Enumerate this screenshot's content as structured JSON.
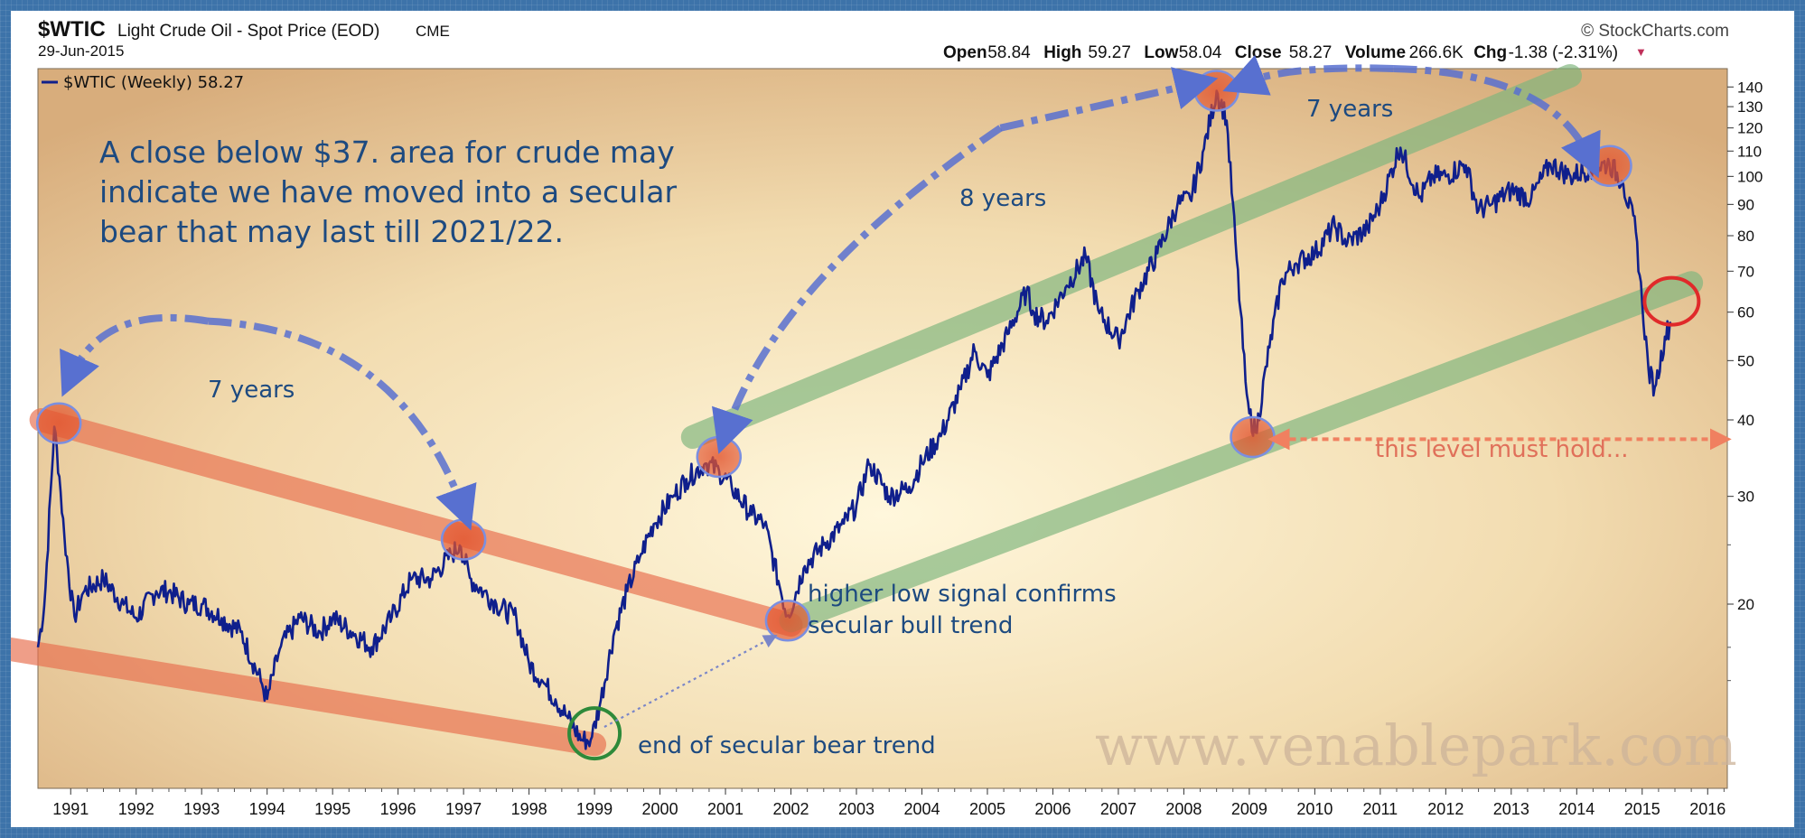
{
  "header": {
    "symbol": "$WTIC",
    "name": "Light Crude Oil - Spot Price (EOD)",
    "exchange": "CME",
    "date": "29-Jun-2015",
    "brand": "© StockCharts.com",
    "ohlc": [
      {
        "label": "Open",
        "value": "58.84"
      },
      {
        "label": "High",
        "value": "59.27"
      },
      {
        "label": "Low",
        "value": "58.04"
      },
      {
        "label": "Close",
        "value": "58.27"
      },
      {
        "label": "Volume",
        "value": "266.6K"
      },
      {
        "label": "Chg",
        "value": "-1.38 (-2.31%)"
      }
    ],
    "chg_marker": "▼"
  },
  "legend": "$WTIC (Weekly) 58.27",
  "annotations": {
    "note": [
      "A close below $37. area for crude may",
      "indicate we have moved into a secular",
      "bear that may last till 2021/22."
    ],
    "seven_years_1": "7 years",
    "eight_years": "8 years",
    "seven_years_2": "7 years",
    "higher_low": [
      "higher low signal confirms",
      "secular bull trend"
    ],
    "end_bear": "end of secular bear trend",
    "level_hold": "this level must hold...",
    "watermark": "www.venablepark.com"
  },
  "colors": {
    "line": "#0f1f8c",
    "bear_channel": "#e8704f",
    "bull_channel": "#7fb57e",
    "arc": "#5870d0",
    "text_annotation": "#1d4a80",
    "hold_arrow": "#f08060"
  },
  "chart_data": {
    "type": "line",
    "title": "$WTIC Light Crude Oil - Spot Price (EOD)",
    "series": [
      {
        "name": "$WTIC (Weekly)",
        "x": [
          1990.5,
          1990.6,
          1990.75,
          1990.82,
          1990.9,
          1991.05,
          1991.2,
          1991.5,
          1991.8,
          1992.0,
          1992.3,
          1992.5,
          1992.8,
          1993.0,
          1993.3,
          1993.6,
          1993.9,
          1994.0,
          1994.2,
          1994.5,
          1994.8,
          1995.0,
          1995.3,
          1995.6,
          1995.9,
          1996.2,
          1996.5,
          1996.8,
          1996.95,
          1997.1,
          1997.3,
          1997.5,
          1997.8,
          1998.0,
          1998.2,
          1998.4,
          1998.6,
          1998.8,
          1998.95,
          1999.1,
          1999.3,
          1999.5,
          1999.7,
          1999.9,
          2000.2,
          2000.4,
          2000.7,
          2000.9,
          2001.1,
          2001.4,
          2001.6,
          2001.8,
          2001.95,
          2002.2,
          2002.5,
          2002.8,
          2003.0,
          2003.2,
          2003.5,
          2003.8,
          2004.0,
          2004.3,
          2004.6,
          2004.8,
          2005.0,
          2005.3,
          2005.6,
          2005.7,
          2005.9,
          2006.2,
          2006.5,
          2006.7,
          2007.0,
          2007.3,
          2007.6,
          2007.9,
          2008.1,
          2008.3,
          2008.5,
          2008.65,
          2008.8,
          2008.95,
          2009.0,
          2009.1,
          2009.3,
          2009.5,
          2009.7,
          2010.0,
          2010.3,
          2010.5,
          2010.8,
          2011.0,
          2011.3,
          2011.6,
          2011.8,
          2012.0,
          2012.3,
          2012.5,
          2012.7,
          2013.0,
          2013.3,
          2013.6,
          2013.9,
          2014.2,
          2014.5,
          2014.7,
          2014.9,
          2015.0,
          2015.1,
          2015.2,
          2015.35,
          2015.45
        ],
        "values": [
          17,
          20,
          39,
          33,
          26,
          19,
          21,
          22,
          20,
          19,
          21,
          21,
          20,
          20,
          19,
          18,
          15,
          14,
          17,
          19,
          18,
          19,
          18,
          17,
          19,
          22,
          22,
          24,
          25,
          22,
          21,
          20,
          19,
          16,
          15,
          14,
          13,
          12,
          12,
          14,
          18,
          21,
          24,
          27,
          30,
          32,
          34,
          33,
          31,
          28,
          27,
          22,
          19,
          23,
          25,
          27,
          29,
          34,
          30,
          31,
          34,
          38,
          45,
          52,
          47,
          55,
          65,
          60,
          58,
          66,
          74,
          60,
          54,
          65,
          75,
          90,
          92,
          110,
          138,
          125,
          75,
          45,
          41,
          38,
          52,
          68,
          72,
          75,
          83,
          78,
          82,
          90,
          112,
          92,
          100,
          100,
          105,
          88,
          90,
          95,
          92,
          105,
          100,
          103,
          105,
          98,
          82,
          62,
          48,
          45,
          55,
          58
        ]
      }
    ],
    "ylabel": "",
    "y_scale": "log",
    "ylim": [
      10,
      150
    ],
    "y_ticks": [
      20,
      30,
      40,
      50,
      60,
      70,
      80,
      90,
      100,
      110,
      120,
      130,
      140
    ],
    "xlim": [
      1990.5,
      2016.3
    ],
    "x_ticks": [
      "1991",
      "1992",
      "1993",
      "1994",
      "1995",
      "1996",
      "1997",
      "1998",
      "1999",
      "2000",
      "2001",
      "2002",
      "2003",
      "2004",
      "2005",
      "2006",
      "2007",
      "2008",
      "2009",
      "2010",
      "2011",
      "2012",
      "2013",
      "2014",
      "2015",
      "2016"
    ],
    "legend_position": "top-left",
    "grid": false
  }
}
